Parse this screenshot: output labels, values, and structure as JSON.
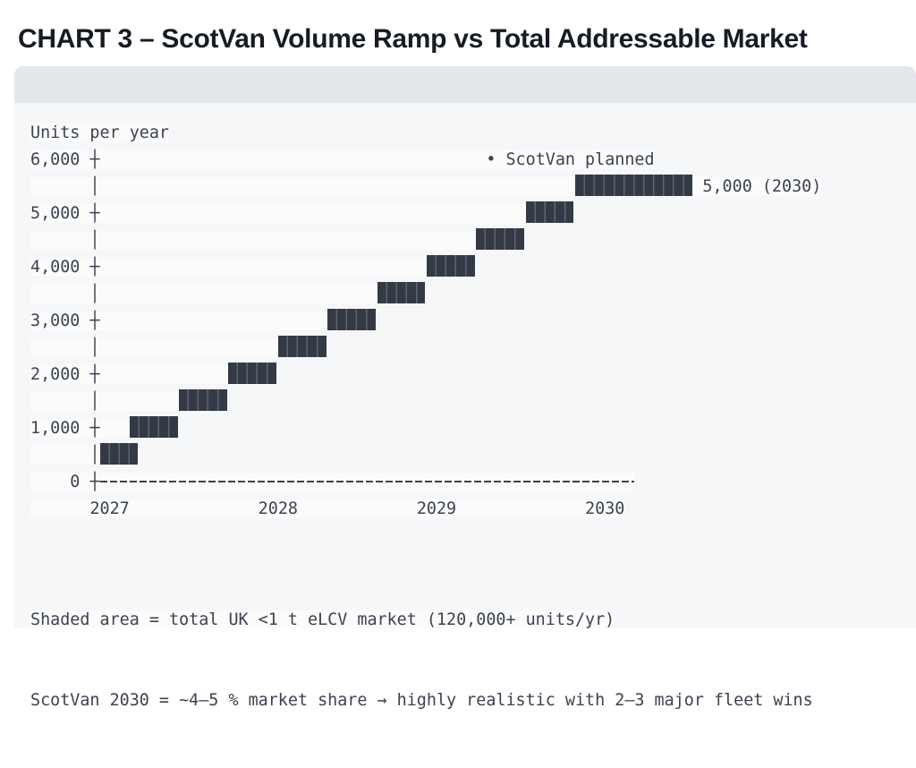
{
  "header": {
    "title": "CHART 3 – ScotVan Volume Ramp vs Total Addressable Market"
  },
  "colors": {
    "title": "#161b24",
    "card_bg": "#f6f7f8",
    "card_header_bg": "#e4e7eb",
    "mono_text": "#3b4250",
    "bar": "#333a46",
    "bar_segment_gap": "#5d6472",
    "line_backing": "rgba(255,255,255,0.55)"
  },
  "chart_data": {
    "type": "bar",
    "variant": "ascii-staircase-ramp",
    "title": "CHART 3 – ScotVan Volume Ramp vs Total Addressable Market",
    "y_axis": {
      "label": "Units per year",
      "ticks": [
        "6,000",
        "5,000",
        "4,000",
        "3,000",
        "2,000",
        "1,000",
        "0"
      ],
      "lim": [
        0,
        6000
      ],
      "tick_step": 1000
    },
    "x_axis": {
      "ticks": [
        "2027",
        "2028",
        "2029",
        "2030"
      ],
      "tick_cols": [
        6,
        23,
        39,
        56
      ]
    },
    "legend": {
      "marker": "•",
      "label": "ScotVan planned",
      "position": "top-right-inside"
    },
    "annotation": "5,000 (2030)",
    "final_value_units": 5000,
    "final_year": "2030",
    "step_values": [
      500,
      1000,
      1500,
      2000,
      2500,
      3000,
      3500,
      4000,
      4500,
      5000
    ],
    "axis_dash_len": 54,
    "grid": false,
    "rows": [
      {
        "label": "6,000",
        "tick": true,
        "legend": true
      },
      {
        "label": "",
        "tick": false,
        "bar_col": 55,
        "bar_len": 12,
        "value": 5000,
        "plateau": true,
        "annotate": true
      },
      {
        "label": "5,000",
        "tick": true,
        "bar_col": 50,
        "bar_len": 5,
        "value": 5000
      },
      {
        "label": "",
        "tick": false,
        "bar_col": 45,
        "bar_len": 5,
        "value": 4500
      },
      {
        "label": "4,000",
        "tick": true,
        "bar_col": 40,
        "bar_len": 5,
        "value": 4000
      },
      {
        "label": "",
        "tick": false,
        "bar_col": 35,
        "bar_len": 5,
        "value": 3500
      },
      {
        "label": "3,000",
        "tick": true,
        "bar_col": 30,
        "bar_len": 5,
        "value": 3000
      },
      {
        "label": "",
        "tick": false,
        "bar_col": 25,
        "bar_len": 5,
        "value": 2500
      },
      {
        "label": "2,000",
        "tick": true,
        "bar_col": 20,
        "bar_len": 5,
        "value": 2000
      },
      {
        "label": "",
        "tick": false,
        "bar_col": 15,
        "bar_len": 5,
        "value": 1500
      },
      {
        "label": "1,000",
        "tick": true,
        "bar_col": 10,
        "bar_len": 5,
        "value": 1000
      },
      {
        "label": "",
        "tick": false,
        "bar_col": 7,
        "bar_len": 4,
        "value": 500
      },
      {
        "label": "0",
        "tick": true,
        "axis_line": true
      }
    ]
  },
  "captions": [
    "Shaded area = total UK <1 t eLCV market (120,000+ units/yr)",
    "ScotVan 2030 = ~4–5 % market share → highly realistic with 2–3 major fleet wins"
  ]
}
